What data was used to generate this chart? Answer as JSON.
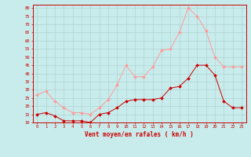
{
  "hours": [
    0,
    1,
    2,
    3,
    4,
    5,
    6,
    7,
    8,
    9,
    10,
    11,
    12,
    13,
    14,
    15,
    16,
    17,
    18,
    19,
    20,
    21,
    22,
    23
  ],
  "wind_avg": [
    15,
    16,
    14,
    11,
    11,
    11,
    10,
    15,
    16,
    19,
    23,
    24,
    24,
    24,
    25,
    31,
    32,
    37,
    45,
    45,
    39,
    23,
    19,
    19
  ],
  "wind_gust": [
    27,
    29,
    23,
    19,
    16,
    16,
    15,
    19,
    24,
    33,
    45,
    38,
    38,
    44,
    54,
    55,
    65,
    80,
    75,
    66,
    50,
    44,
    44,
    44
  ],
  "bg_color": "#c8ecec",
  "grid_color": "#b0d4d4",
  "line_avg_color": "#cc0000",
  "line_gust_color": "#ff9999",
  "xlabel": "Vent moyen/en rafales ( km/h )",
  "ylim": [
    10,
    82
  ],
  "yticks": [
    10,
    15,
    20,
    25,
    30,
    35,
    40,
    45,
    50,
    55,
    60,
    65,
    70,
    75,
    80
  ],
  "xlabel_color": "#cc0000",
  "tick_color": "#cc0000",
  "spine_color": "#cc0000"
}
